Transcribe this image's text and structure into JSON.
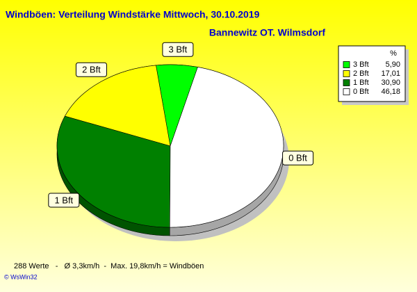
{
  "chart_data": {
    "type": "pie",
    "title": "Windböen: Verteilung Windstärke  Mittwoch, 30.10.2019",
    "subtitle": "Bannewitz OT. Wilmsdorf",
    "legend_title": "%",
    "categories": [
      "3 Bft",
      "2 Bft",
      "1 Bft",
      "0 Bft"
    ],
    "values": [
      5.9,
      17.01,
      30.9,
      46.18
    ],
    "value_labels": [
      "5,90",
      "17,01",
      "30,90",
      "46,18"
    ],
    "colors": [
      "#00ff00",
      "#ffff00",
      "#008000",
      "#ffffff"
    ],
    "legend": "top-right",
    "footer": "288 Werte   -   Ø 3,3km/h  -  Max. 19,8km/h = Windböen",
    "credit": "© WsWin32"
  }
}
